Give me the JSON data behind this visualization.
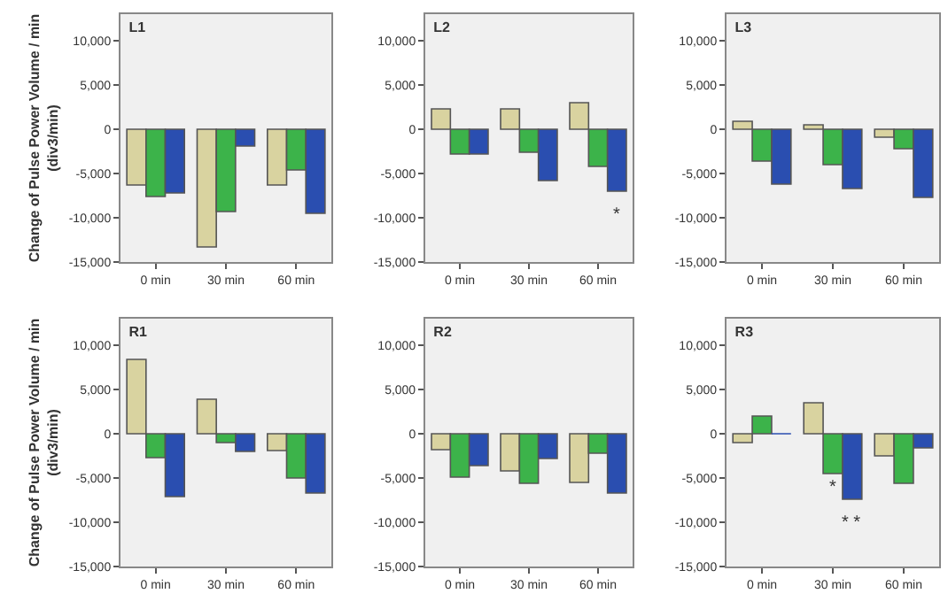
{
  "chart_data": [
    {
      "type": "bar",
      "title": "L1",
      "ylabel": "Change of Pulse Power Volume / min\n(div3/min)",
      "categories": [
        "0 min",
        "30 min",
        "60 min"
      ],
      "ylim": [
        -15000,
        13000
      ],
      "yticks": [
        {
          "value": -15000,
          "label": "-15,000"
        },
        {
          "value": -10000,
          "label": "-10,000"
        },
        {
          "value": -5000,
          "label": "-5,000"
        },
        {
          "value": 0,
          "label": "0"
        },
        {
          "value": 5000,
          "label": "5,000"
        },
        {
          "value": 10000,
          "label": "10,000"
        }
      ],
      "series": [
        {
          "color": "#d9d3a0",
          "values": [
            -6300,
            -13300,
            -6300
          ]
        },
        {
          "color": "#3cb34a",
          "values": [
            -7600,
            -9300,
            -4600
          ]
        },
        {
          "color": "#2a4eb0",
          "values": [
            -7200,
            -1900,
            -9500
          ]
        }
      ]
    },
    {
      "type": "bar",
      "title": "L2",
      "categories": [
        "0 min",
        "30 min",
        "60 min"
      ],
      "ylim": [
        -15000,
        13000
      ],
      "yticks": [
        {
          "value": -15000,
          "label": "-15,000"
        },
        {
          "value": -10000,
          "label": "-10,000"
        },
        {
          "value": -5000,
          "label": "-5,000"
        },
        {
          "value": 0,
          "label": "0"
        },
        {
          "value": 5000,
          "label": "5,000"
        },
        {
          "value": 10000,
          "label": "10,000"
        }
      ],
      "series": [
        {
          "color": "#d9d3a0",
          "values": [
            2300,
            2300,
            3000
          ]
        },
        {
          "color": "#3cb34a",
          "values": [
            -2800,
            -2600,
            -4200
          ]
        },
        {
          "color": "#2a4eb0",
          "values": [
            -2800,
            -5800,
            -7000
          ]
        }
      ],
      "annotations": [
        "*"
      ]
    },
    {
      "type": "bar",
      "title": "L3",
      "categories": [
        "0 min",
        "30 min",
        "60 min"
      ],
      "ylim": [
        -15000,
        13000
      ],
      "yticks": [
        {
          "value": -15000,
          "label": "-15,000"
        },
        {
          "value": -10000,
          "label": "-10,000"
        },
        {
          "value": -5000,
          "label": "-5,000"
        },
        {
          "value": 0,
          "label": "0"
        },
        {
          "value": 5000,
          "label": "5,000"
        },
        {
          "value": 10000,
          "label": "10,000"
        }
      ],
      "series": [
        {
          "color": "#d9d3a0",
          "values": [
            900,
            500,
            -900
          ]
        },
        {
          "color": "#3cb34a",
          "values": [
            -3600,
            -4000,
            -2200
          ]
        },
        {
          "color": "#2a4eb0",
          "values": [
            -6200,
            -6700,
            -7700
          ]
        }
      ]
    },
    {
      "type": "bar",
      "title": "R1",
      "ylabel": "Change of Pulse Power Volume / min\n(div3/min)",
      "categories": [
        "0 min",
        "30 min",
        "60 min"
      ],
      "ylim": [
        -15000,
        13000
      ],
      "yticks": [
        {
          "value": -15000,
          "label": "-15,000"
        },
        {
          "value": -10000,
          "label": "-10,000"
        },
        {
          "value": -5000,
          "label": "-5,000"
        },
        {
          "value": 0,
          "label": "0"
        },
        {
          "value": 5000,
          "label": "5,000"
        },
        {
          "value": 10000,
          "label": "10,000"
        }
      ],
      "series": [
        {
          "color": "#d9d3a0",
          "values": [
            8400,
            3900,
            -1900
          ]
        },
        {
          "color": "#3cb34a",
          "values": [
            -2700,
            -1000,
            -5000
          ]
        },
        {
          "color": "#2a4eb0",
          "values": [
            -7100,
            -2000,
            -6700
          ]
        }
      ]
    },
    {
      "type": "bar",
      "title": "R2",
      "categories": [
        "0 min",
        "30 min",
        "60 min"
      ],
      "ylim": [
        -15000,
        13000
      ],
      "yticks": [
        {
          "value": -15000,
          "label": "-15,000"
        },
        {
          "value": -10000,
          "label": "-10,000"
        },
        {
          "value": -5000,
          "label": "-5,000"
        },
        {
          "value": 0,
          "label": "0"
        },
        {
          "value": 5000,
          "label": "5,000"
        },
        {
          "value": 10000,
          "label": "10,000"
        }
      ],
      "series": [
        {
          "color": "#d9d3a0",
          "values": [
            -1800,
            -4200,
            -5500
          ]
        },
        {
          "color": "#3cb34a",
          "values": [
            -4900,
            -5600,
            -2200
          ]
        },
        {
          "color": "#2a4eb0",
          "values": [
            -3600,
            -2800,
            -6700
          ]
        }
      ]
    },
    {
      "type": "bar",
      "title": "R3",
      "categories": [
        "0 min",
        "30 min",
        "60 min"
      ],
      "ylim": [
        -15000,
        13000
      ],
      "yticks": [
        {
          "value": -15000,
          "label": "-15,000"
        },
        {
          "value": -10000,
          "label": "-10,000"
        },
        {
          "value": -5000,
          "label": "-5,000"
        },
        {
          "value": 0,
          "label": "0"
        },
        {
          "value": 5000,
          "label": "5,000"
        },
        {
          "value": 10000,
          "label": "10,000"
        }
      ],
      "series": [
        {
          "color": "#d9d3a0",
          "values": [
            -1000,
            3500,
            -2500
          ]
        },
        {
          "color": "#3cb34a",
          "values": [
            2000,
            -4500,
            -5600
          ]
        },
        {
          "color": "#2a4eb0",
          "values": [
            0,
            -7400,
            -1600
          ]
        }
      ],
      "annotations": [
        {
          "text": "*",
          "x": "30 min",
          "y": -4500
        },
        "* *"
      ]
    }
  ]
}
